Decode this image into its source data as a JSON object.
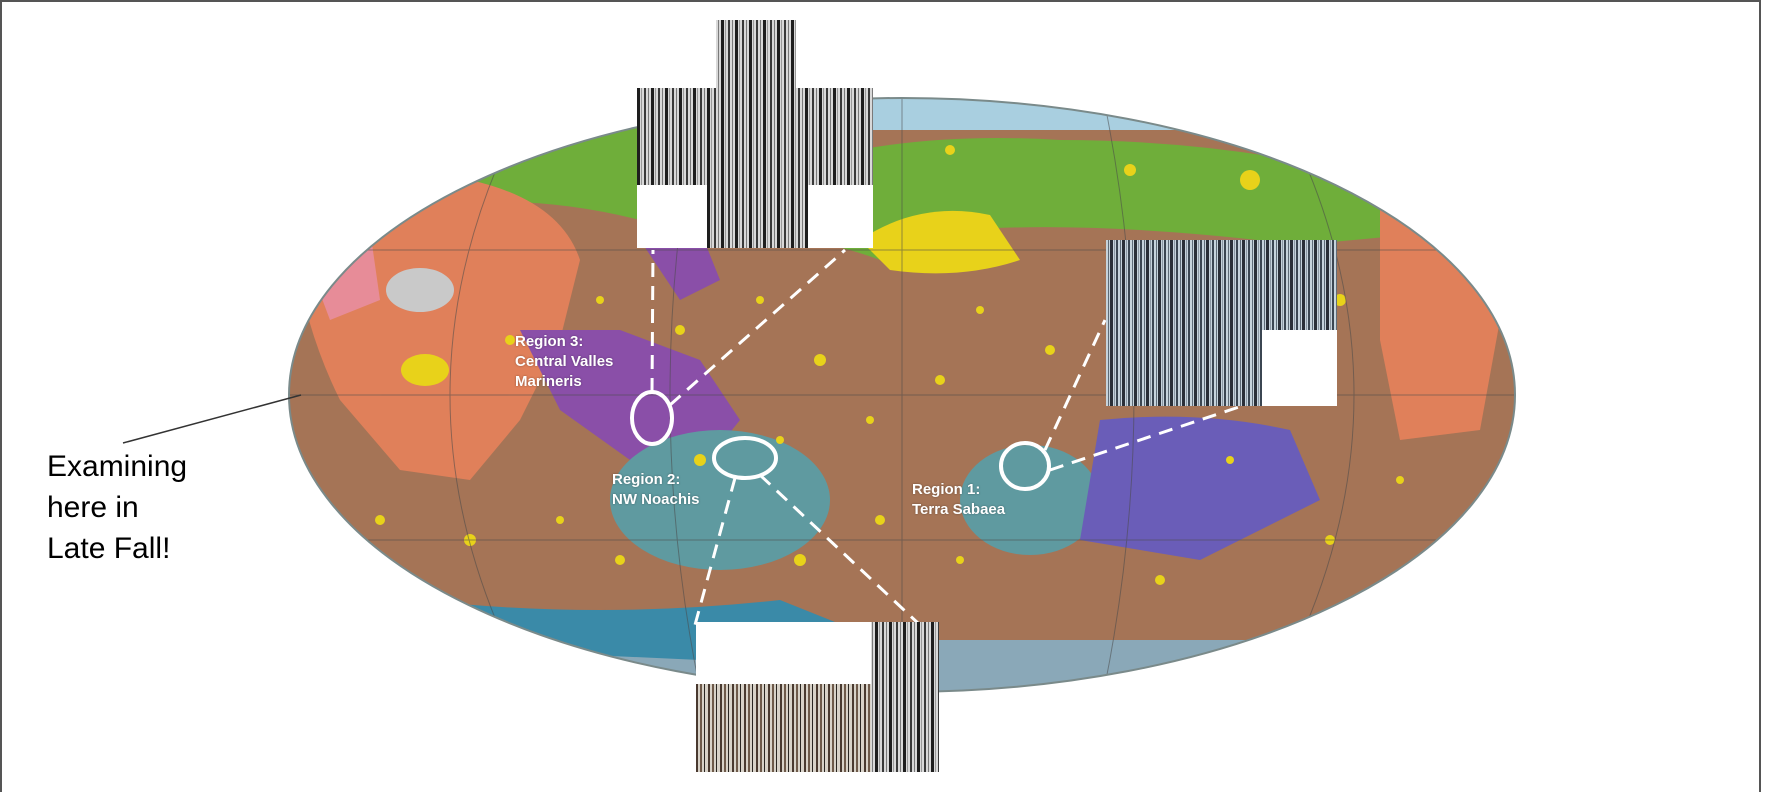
{
  "annotation": {
    "lines": [
      "Examining",
      "here in",
      "Late Fall!"
    ]
  },
  "regions": [
    {
      "name": "region-1",
      "title": "Region 1:",
      "place": "Terra Sabaea"
    },
    {
      "name": "region-2",
      "title": "Region 2:",
      "place": "NW Noachis"
    },
    {
      "name": "region-3",
      "title": "Region 3:",
      "place_line1": "Central Valles",
      "place_line2": "Marineris"
    }
  ],
  "colors": {
    "frame": "#555555",
    "highland_brown": "#a57456",
    "northern_plains_green": "#6fae3a",
    "volcanic_orange": "#e0805a",
    "crater_yellow": "#e8d21a",
    "ice_cap_light_blue": "#a9cfe0",
    "valles_purple": "#8a4fa8",
    "basin_teal": "#5f9aa0",
    "callout_white": "#ffffff"
  }
}
